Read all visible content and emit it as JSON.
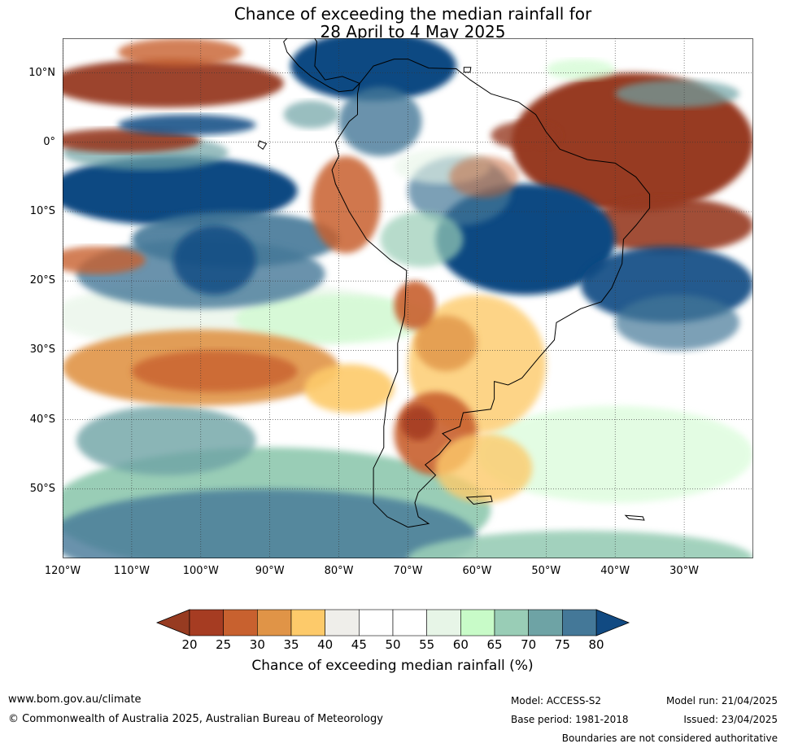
{
  "title": {
    "line1": "Chance of exceeding the median rainfall for",
    "line2": "28 April to 4 May 2025"
  },
  "map": {
    "lat_labels": [
      {
        "text": "10°N",
        "lat": 10
      },
      {
        "text": "0°",
        "lat": 0
      },
      {
        "text": "10°S",
        "lat": -10
      },
      {
        "text": "20°S",
        "lat": -20
      },
      {
        "text": "30°S",
        "lat": -30
      },
      {
        "text": "40°S",
        "lat": -40
      },
      {
        "text": "50°S",
        "lat": -50
      }
    ],
    "lon_labels": [
      {
        "text": "120°W",
        "lon": -120
      },
      {
        "text": "110°W",
        "lon": -110
      },
      {
        "text": "100°W",
        "lon": -100
      },
      {
        "text": "90°W",
        "lon": -90
      },
      {
        "text": "80°W",
        "lon": -80
      },
      {
        "text": "70°W",
        "lon": -70
      },
      {
        "text": "60°W",
        "lon": -60
      },
      {
        "text": "50°W",
        "lon": -50
      },
      {
        "text": "40°W",
        "lon": -40
      },
      {
        "text": "30°W",
        "lon": -30
      }
    ],
    "lon_range": [
      -120,
      -20
    ],
    "lat_range": [
      -60,
      15
    ]
  },
  "colorbar": {
    "labels": [
      "20",
      "25",
      "30",
      "35",
      "40",
      "45",
      "50",
      "55",
      "60",
      "65",
      "70",
      "75",
      "80"
    ],
    "colors": [
      "#a63c22",
      "#c8612f",
      "#e09447",
      "#fdca6a",
      "#efeeea",
      "#ffffff",
      "#ffffff",
      "#e7f5e7",
      "#c8fbc8",
      "#99cdb6",
      "#6ea3a5",
      "#447898"
    ],
    "under_color": "#973b21",
    "over_color": "#114a82",
    "title": "Chance of exceeding median rainfall (%)"
  },
  "footer": {
    "website": "www.bom.gov.au/climate",
    "copyright": "© Commonwealth of Australia 2025, Australian Bureau of Meteorology",
    "model": "Model: ACCESS-S2",
    "base_period": "Base period: 1981-2018",
    "model_run": "Model run: 21/04/2025",
    "issued": "Issued: 23/04/2025",
    "disclaimer": "Boundaries are not considered authoritative"
  }
}
